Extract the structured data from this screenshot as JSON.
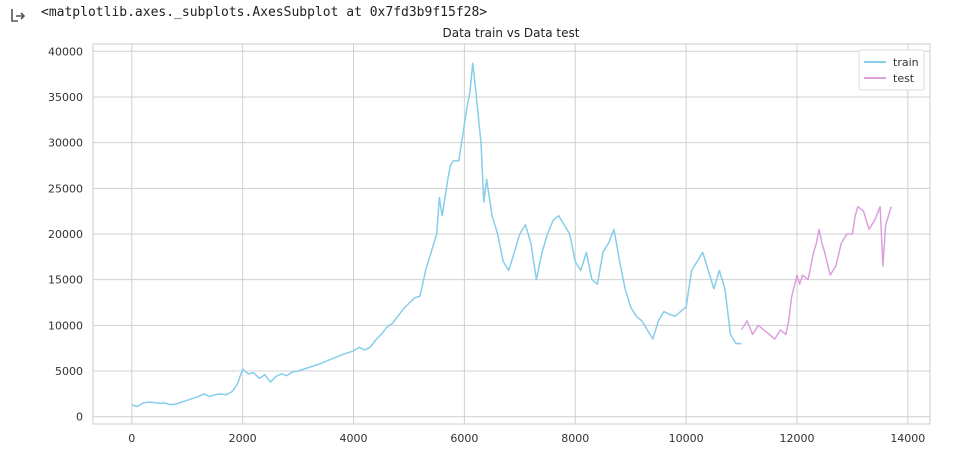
{
  "cell_output": {
    "repr": "<matplotlib.axes._subplots.AxesSubplot at 0x7fd3b9f15f28>",
    "icon": "output-arrow-icon"
  },
  "chart_data": {
    "type": "line",
    "title": "Data train vs Data test",
    "xlabel": "",
    "ylabel": "",
    "xlim": [
      -700,
      14400
    ],
    "ylim": [
      -800,
      40800
    ],
    "x_ticks": [
      0,
      2000,
      4000,
      6000,
      8000,
      10000,
      12000,
      14000
    ],
    "x_tick_labels": [
      "0",
      "2000",
      "4000",
      "6000",
      "8000",
      "10000",
      "12000",
      "14000"
    ],
    "y_ticks": [
      0,
      5000,
      10000,
      15000,
      20000,
      25000,
      30000,
      35000,
      40000
    ],
    "y_tick_labels": [
      "0",
      "5000",
      "10000",
      "15000",
      "20000",
      "25000",
      "30000",
      "35000",
      "40000"
    ],
    "grid": true,
    "legend_position": "top-right",
    "series": [
      {
        "name": "train",
        "color": "#87ceeb",
        "x": [
          0,
          100,
          200,
          300,
          400,
          500,
          600,
          700,
          800,
          900,
          1000,
          1100,
          1200,
          1300,
          1400,
          1500,
          1600,
          1700,
          1800,
          1900,
          2000,
          2100,
          2200,
          2300,
          2400,
          2500,
          2600,
          2700,
          2800,
          2900,
          3000,
          3200,
          3400,
          3600,
          3800,
          4000,
          4100,
          4200,
          4300,
          4400,
          4500,
          4600,
          4700,
          4800,
          4900,
          5000,
          5100,
          5200,
          5300,
          5400,
          5500,
          5550,
          5600,
          5700,
          5750,
          5800,
          5900,
          6000,
          6050,
          6100,
          6150,
          6200,
          6250,
          6300,
          6350,
          6400,
          6450,
          6500,
          6600,
          6700,
          6800,
          6900,
          7000,
          7100,
          7200,
          7300,
          7400,
          7500,
          7600,
          7700,
          7800,
          7900,
          8000,
          8100,
          8200,
          8300,
          8400,
          8500,
          8600,
          8700,
          8800,
          8900,
          9000,
          9100,
          9200,
          9300,
          9400,
          9500,
          9600,
          9700,
          9800,
          9900,
          10000,
          10100,
          10200,
          10300,
          10400,
          10500,
          10600,
          10700,
          10800,
          10900,
          11000
        ],
        "y": [
          1300,
          1100,
          1500,
          1600,
          1550,
          1450,
          1500,
          1300,
          1400,
          1600,
          1800,
          2000,
          2200,
          2500,
          2200,
          2400,
          2500,
          2400,
          2700,
          3500,
          5200,
          4700,
          4800,
          4200,
          4600,
          3800,
          4400,
          4700,
          4500,
          4900,
          5000,
          5400,
          5800,
          6300,
          6800,
          7200,
          7600,
          7300,
          7600,
          8400,
          9000,
          9800,
          10200,
          11000,
          11800,
          12400,
          13000,
          13200,
          16000,
          18000,
          20000,
          24000,
          22000,
          26000,
          27500,
          28000,
          28000,
          32000,
          34000,
          35500,
          38700,
          36000,
          33000,
          30000,
          23500,
          26000,
          24000,
          22000,
          20000,
          17000,
          16000,
          18000,
          20000,
          21000,
          19000,
          15000,
          18000,
          20000,
          21500,
          22000,
          21000,
          20000,
          17000,
          16000,
          18000,
          15000,
          14500,
          18000,
          19000,
          20500,
          17000,
          14000,
          12000,
          11000,
          10500,
          9500,
          8500,
          10500,
          11500,
          11200,
          11000,
          11500,
          12000,
          16000,
          17000,
          18000,
          16000,
          14000,
          16000,
          14000,
          9000,
          8000,
          8000
        ]
      },
      {
        "name": "test",
        "color": "#dda0dd",
        "x": [
          11000,
          11100,
          11200,
          11300,
          11400,
          11500,
          11600,
          11700,
          11800,
          11850,
          11900,
          12000,
          12050,
          12100,
          12200,
          12300,
          12350,
          12400,
          12450,
          12500,
          12600,
          12700,
          12800,
          12900,
          13000,
          13050,
          13100,
          13200,
          13300,
          13400,
          13500,
          13550,
          13600,
          13700
        ],
        "y": [
          9500,
          10500,
          9000,
          10000,
          9500,
          9000,
          8500,
          9500,
          9000,
          10500,
          13000,
          15500,
          14500,
          15500,
          15000,
          18000,
          19000,
          20500,
          19000,
          18000,
          15500,
          16500,
          19000,
          20000,
          20000,
          22000,
          23000,
          22500,
          20500,
          21500,
          23000,
          16500,
          21000,
          23000
        ]
      }
    ]
  }
}
